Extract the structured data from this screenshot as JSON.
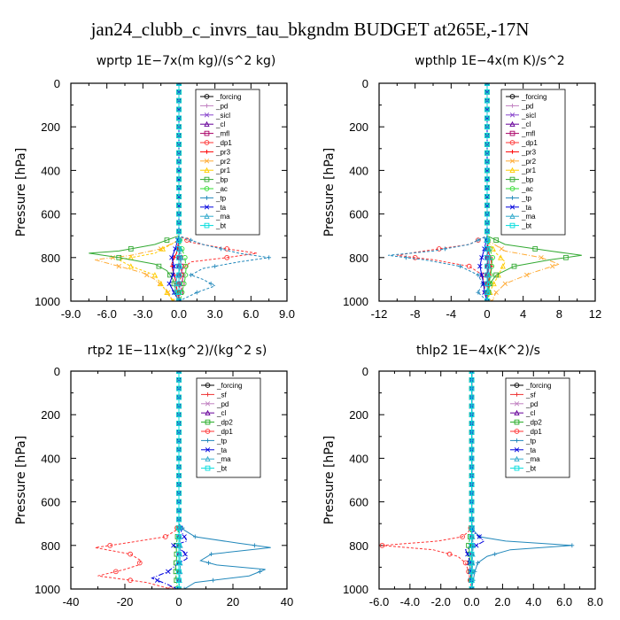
{
  "page_title": "jan24_clubb_c_invrs_tau_bkgndm  BUDGET at265E,-17N",
  "colors": {
    "forcing": "#000000",
    "pd": "#c080c0",
    "sicl": "#8844cc",
    "cl": "#660099",
    "mfl": "#aa0066",
    "dp1": "#ff3333",
    "pr3": "#ff0000",
    "pr2": "#ffaa33",
    "pr1": "#ffcc00",
    "bp": "#33aa33",
    "ac": "#33dd33",
    "tp": "#2288bb",
    "ta": "#0000dd",
    "ma": "#33aacc",
    "bt": "#00dddd",
    "sf": "#ee3333",
    "dp2": "#22aa22"
  },
  "chart_data": [
    {
      "type": "line",
      "title": "wprtp   1E−7x(m kg)/(s^2 kg)",
      "ylabel": "Pressure [hPa]",
      "xlim": [
        -9,
        9
      ],
      "ylim": [
        1000,
        0
      ],
      "xticks": [
        "-9.0",
        "-6.0",
        "-3.0",
        "0.0",
        "3.0",
        "6.0",
        "9.0"
      ],
      "yticks": [
        "0",
        "200",
        "400",
        "600",
        "800",
        "1000"
      ],
      "legend_pos": "top-right",
      "series": [
        {
          "name": "_forcing",
          "key": "forcing",
          "y": [
            0,
            1000
          ],
          "x": [
            0,
            0
          ]
        },
        {
          "name": "_pd",
          "key": "pd",
          "y": [
            0,
            1000
          ],
          "x": [
            0,
            0
          ]
        },
        {
          "name": "_sicl",
          "key": "sicl",
          "y": [
            0,
            1000
          ],
          "x": [
            0,
            0
          ]
        },
        {
          "name": "_cl",
          "key": "cl",
          "y": [
            0,
            1000
          ],
          "x": [
            0,
            0
          ]
        },
        {
          "name": "_mfl",
          "key": "mfl",
          "y": [
            0,
            700,
            760,
            800,
            850,
            900,
            950,
            1000
          ],
          "x": [
            0,
            0,
            0,
            0.1,
            0.2,
            0.3,
            0.2,
            0
          ]
        },
        {
          "name": "_dp1",
          "key": "dp1",
          "y": [
            0,
            700,
            730,
            760,
            780,
            800,
            820,
            850,
            900,
            1000
          ],
          "x": [
            0,
            0,
            1,
            4,
            6.5,
            4,
            1,
            0.3,
            0.1,
            0
          ]
        },
        {
          "name": "_pr3",
          "key": "pr3",
          "y": [
            0,
            720,
            780,
            800,
            830,
            860,
            900,
            1000
          ],
          "x": [
            0,
            0,
            -0.2,
            -0.4,
            -0.6,
            -0.5,
            -0.3,
            0
          ]
        },
        {
          "name": "_pr2",
          "key": "pr2",
          "y": [
            0,
            720,
            760,
            790,
            810,
            840,
            870,
            900,
            950,
            1000
          ],
          "x": [
            0,
            0,
            -1.5,
            -4,
            -7,
            -5,
            -3,
            -2,
            -1,
            -0.5
          ]
        },
        {
          "name": "_pr1",
          "key": "pr1",
          "y": [
            0,
            720,
            780,
            810,
            840,
            880,
            920,
            960,
            1000
          ],
          "x": [
            0,
            0,
            -2,
            -5,
            -4,
            -2,
            -1.5,
            -1,
            -0.5
          ]
        },
        {
          "name": "_bp",
          "key": "bp",
          "y": [
            0,
            700,
            740,
            770,
            780,
            800,
            830,
            860,
            900,
            940,
            980,
            1000
          ],
          "x": [
            0,
            0,
            -2,
            -5,
            -7.5,
            -5,
            -2,
            -1,
            -0.5,
            -0.3,
            -0.2,
            0
          ]
        },
        {
          "name": "_ac",
          "key": "ac",
          "y": [
            0,
            700,
            750,
            800,
            850,
            900,
            950,
            980,
            1000
          ],
          "x": [
            0,
            0,
            0.2,
            0.5,
            0.6,
            0.5,
            0.3,
            0.2,
            0
          ]
        },
        {
          "name": "_tp",
          "key": "tp",
          "y": [
            0,
            700,
            740,
            780,
            800,
            820,
            850,
            880,
            900,
            930,
            960,
            1000
          ],
          "x": [
            0,
            0,
            2,
            5,
            7.5,
            5,
            2,
            1,
            2,
            3,
            1.5,
            0
          ]
        },
        {
          "name": "_ta",
          "key": "ta",
          "y": [
            0,
            700,
            760,
            800,
            840,
            880,
            920,
            960,
            1000
          ],
          "x": [
            0,
            0,
            -0.3,
            -0.6,
            -0.4,
            -0.5,
            -0.8,
            -0.4,
            0
          ]
        },
        {
          "name": "_ma",
          "key": "ma",
          "y": [
            0,
            700,
            760,
            800,
            850,
            900,
            950,
            1000
          ],
          "x": [
            0,
            0,
            0.1,
            0.2,
            0.1,
            -0.2,
            -0.3,
            -0.1
          ]
        },
        {
          "name": "_bt",
          "key": "bt",
          "y": [
            0,
            1000
          ],
          "x": [
            0,
            0
          ]
        }
      ]
    },
    {
      "type": "line",
      "title": "wpthlp   1E−4x(m K)/s^2",
      "ylabel": "Pressure [hPa]",
      "xlim": [
        -12,
        12
      ],
      "ylim": [
        1000,
        0
      ],
      "xticks": [
        "-12",
        "-8",
        "-4",
        "0",
        "4",
        "8",
        "12"
      ],
      "yticks": [
        "0",
        "200",
        "400",
        "600",
        "800",
        "1000"
      ],
      "legend_pos": "top-right",
      "series": [
        {
          "name": "_forcing",
          "key": "forcing",
          "y": [
            0,
            1000
          ],
          "x": [
            0,
            0
          ]
        },
        {
          "name": "_pd",
          "key": "pd",
          "y": [
            0,
            1000
          ],
          "x": [
            0,
            0
          ]
        },
        {
          "name": "_sicl",
          "key": "sicl",
          "y": [
            0,
            1000
          ],
          "x": [
            0,
            0
          ]
        },
        {
          "name": "_cl",
          "key": "cl",
          "y": [
            0,
            1000
          ],
          "x": [
            0,
            0
          ]
        },
        {
          "name": "_mfl",
          "key": "mfl",
          "y": [
            0,
            700,
            800,
            900,
            1000
          ],
          "x": [
            0,
            0,
            0.1,
            0.1,
            0
          ]
        },
        {
          "name": "_dp1",
          "key": "dp1",
          "y": [
            0,
            700,
            740,
            770,
            790,
            810,
            840,
            880,
            1000
          ],
          "x": [
            0,
            0,
            -2,
            -7,
            -10,
            -6,
            -2,
            -0.5,
            0
          ]
        },
        {
          "name": "_pr3",
          "key": "pr3",
          "y": [
            0,
            720,
            780,
            800,
            830,
            860,
            900,
            1000
          ],
          "x": [
            0,
            0,
            0.2,
            0.4,
            0.5,
            0.4,
            0.2,
            0
          ]
        },
        {
          "name": "_pr2",
          "key": "pr2",
          "y": [
            0,
            720,
            770,
            800,
            830,
            870,
            920,
            960,
            1000
          ],
          "x": [
            0,
            0,
            2,
            6,
            8,
            5,
            2,
            1,
            0.5
          ]
        },
        {
          "name": "_pr1",
          "key": "pr1",
          "y": [
            0,
            720,
            780,
            820,
            860,
            900,
            940,
            1000
          ],
          "x": [
            0,
            0,
            1,
            2,
            1.5,
            1,
            0.5,
            0
          ]
        },
        {
          "name": "_bp",
          "key": "bp",
          "y": [
            0,
            700,
            740,
            770,
            790,
            810,
            840,
            880,
            920,
            1000
          ],
          "x": [
            0,
            0,
            2,
            7,
            10.5,
            7,
            3,
            1,
            0.3,
            0
          ]
        },
        {
          "name": "_ac",
          "key": "ac",
          "y": [
            0,
            700,
            760,
            800,
            850,
            900,
            950,
            1000
          ],
          "x": [
            0,
            0,
            0.3,
            0.6,
            0.5,
            0.3,
            0.2,
            0
          ]
        },
        {
          "name": "_tp",
          "key": "tp",
          "y": [
            0,
            700,
            740,
            770,
            790,
            810,
            840,
            880,
            920,
            960,
            1000
          ],
          "x": [
            0,
            0,
            -2,
            -6,
            -11,
            -7,
            -3,
            -1,
            -0.5,
            -1,
            0
          ]
        },
        {
          "name": "_ta",
          "key": "ta",
          "y": [
            0,
            700,
            760,
            800,
            840,
            880,
            920,
            960,
            1000
          ],
          "x": [
            0,
            0,
            -0.3,
            -0.6,
            -0.8,
            -0.6,
            -0.4,
            -0.3,
            0
          ]
        },
        {
          "name": "_ma",
          "key": "ma",
          "y": [
            0,
            700,
            760,
            800,
            850,
            900,
            950,
            1000
          ],
          "x": [
            0,
            0,
            0.2,
            0.3,
            0.2,
            0.1,
            0.1,
            0
          ]
        },
        {
          "name": "_bt",
          "key": "bt",
          "y": [
            0,
            1000
          ],
          "x": [
            0,
            0
          ]
        }
      ]
    },
    {
      "type": "line",
      "title": "rtp2   1E−11x(kg^2)/(kg^2 s)",
      "ylabel": "Pressure [hPa]",
      "xlim": [
        -40,
        40
      ],
      "ylim": [
        1000,
        0
      ],
      "xticks": [
        "-40",
        "-20",
        "0",
        "20",
        "40"
      ],
      "yticks": [
        "0",
        "200",
        "400",
        "600",
        "800",
        "1000"
      ],
      "legend_pos": "top-right",
      "series": [
        {
          "name": "_forcing",
          "key": "forcing",
          "y": [
            0,
            1000
          ],
          "x": [
            0,
            0
          ]
        },
        {
          "name": "_sf",
          "key": "sf",
          "y": [
            0,
            1000
          ],
          "x": [
            0,
            0
          ]
        },
        {
          "name": "_pd",
          "key": "pd",
          "y": [
            0,
            1000
          ],
          "x": [
            0,
            0
          ]
        },
        {
          "name": "_cl",
          "key": "cl",
          "y": [
            0,
            1000
          ],
          "x": [
            0,
            0
          ]
        },
        {
          "name": "_dp2",
          "key": "dp2",
          "y": [
            0,
            700,
            760,
            800,
            850,
            900,
            950,
            1000
          ],
          "x": [
            0,
            0,
            -0.5,
            -1,
            -0.8,
            -1.2,
            -1,
            -0.5
          ]
        },
        {
          "name": "_dp1",
          "key": "dp1",
          "y": [
            0,
            700,
            730,
            760,
            790,
            810,
            840,
            870,
            890,
            910,
            940,
            970,
            1000
          ],
          "x": [
            0,
            0,
            -1,
            -5,
            -20,
            -31,
            -18,
            -14,
            -15,
            -20,
            -30,
            -12,
            -3
          ]
        },
        {
          "name": "_tp",
          "key": "tp",
          "y": [
            0,
            700,
            730,
            760,
            790,
            810,
            840,
            870,
            890,
            910,
            940,
            970,
            1000
          ],
          "x": [
            0,
            0,
            2,
            6,
            22,
            34,
            12,
            8,
            14,
            32,
            26,
            6,
            2
          ]
        },
        {
          "name": "_ta",
          "key": "ta",
          "y": [
            0,
            700,
            740,
            780,
            800,
            830,
            860,
            890,
            920,
            950,
            980,
            1000
          ],
          "x": [
            0,
            0,
            1,
            3,
            -2,
            2,
            3,
            -1,
            -4,
            -10,
            -4,
            -1
          ]
        },
        {
          "name": "_ma",
          "key": "ma",
          "y": [
            0,
            700,
            760,
            800,
            850,
            900,
            950,
            1000
          ],
          "x": [
            0,
            0,
            0.3,
            0.5,
            0.4,
            0.5,
            0.3,
            0
          ]
        },
        {
          "name": "_bt",
          "key": "bt",
          "y": [
            0,
            1000
          ],
          "x": [
            0,
            0
          ]
        }
      ]
    },
    {
      "type": "line",
      "title": "thlp2   1E−4x(K^2)/s",
      "ylabel": "Pressure [hPa]",
      "xlim": [
        -6,
        8
      ],
      "ylim": [
        1000,
        0
      ],
      "xticks": [
        "-6.0",
        "-4.0",
        "-2.0",
        "0.0",
        "2.0",
        "4.0",
        "6.0",
        "8.0"
      ],
      "yticks": [
        "0",
        "200",
        "400",
        "600",
        "800",
        "1000"
      ],
      "legend_pos": "top-right",
      "series": [
        {
          "name": "_forcing",
          "key": "forcing",
          "y": [
            0,
            1000
          ],
          "x": [
            0,
            0
          ]
        },
        {
          "name": "_sf",
          "key": "sf",
          "y": [
            0,
            1000
          ],
          "x": [
            0,
            0
          ]
        },
        {
          "name": "_pd",
          "key": "pd",
          "y": [
            0,
            1000
          ],
          "x": [
            0,
            0
          ]
        },
        {
          "name": "_cl",
          "key": "cl",
          "y": [
            0,
            1000
          ],
          "x": [
            0,
            0
          ]
        },
        {
          "name": "_dp2",
          "key": "dp2",
          "y": [
            0,
            700,
            760,
            800,
            850,
            900,
            950,
            1000
          ],
          "x": [
            0,
            0,
            -0.1,
            -0.2,
            -0.1,
            -0.1,
            -0.05,
            0
          ]
        },
        {
          "name": "_dp1",
          "key": "dp1",
          "y": [
            0,
            700,
            730,
            760,
            780,
            800,
            820,
            850,
            880,
            920,
            960,
            1000
          ],
          "x": [
            0,
            0,
            -0.1,
            -0.6,
            -2.2,
            -5.8,
            -2.5,
            -0.9,
            -0.4,
            -0.2,
            -0.1,
            0
          ]
        },
        {
          "name": "_tp",
          "key": "tp",
          "y": [
            0,
            700,
            730,
            760,
            780,
            800,
            820,
            850,
            880,
            920,
            960,
            1000
          ],
          "x": [
            0,
            0,
            0.1,
            0.5,
            2.2,
            6.5,
            2.5,
            1.0,
            0.4,
            0.2,
            0.1,
            0
          ]
        },
        {
          "name": "_ta",
          "key": "ta",
          "y": [
            0,
            700,
            740,
            760,
            780,
            800,
            820,
            850,
            900,
            1000
          ],
          "x": [
            0,
            0,
            0.1,
            0.5,
            0.8,
            0.3,
            -0.4,
            -0.2,
            -0.1,
            0
          ]
        },
        {
          "name": "_ma",
          "key": "ma",
          "y": [
            0,
            700,
            760,
            800,
            850,
            900,
            950,
            1000
          ],
          "x": [
            0,
            0,
            0.05,
            0.1,
            0.05,
            0.05,
            0.02,
            0
          ]
        },
        {
          "name": "_bt",
          "key": "bt",
          "y": [
            0,
            1000
          ],
          "x": [
            0,
            0
          ]
        }
      ]
    }
  ]
}
